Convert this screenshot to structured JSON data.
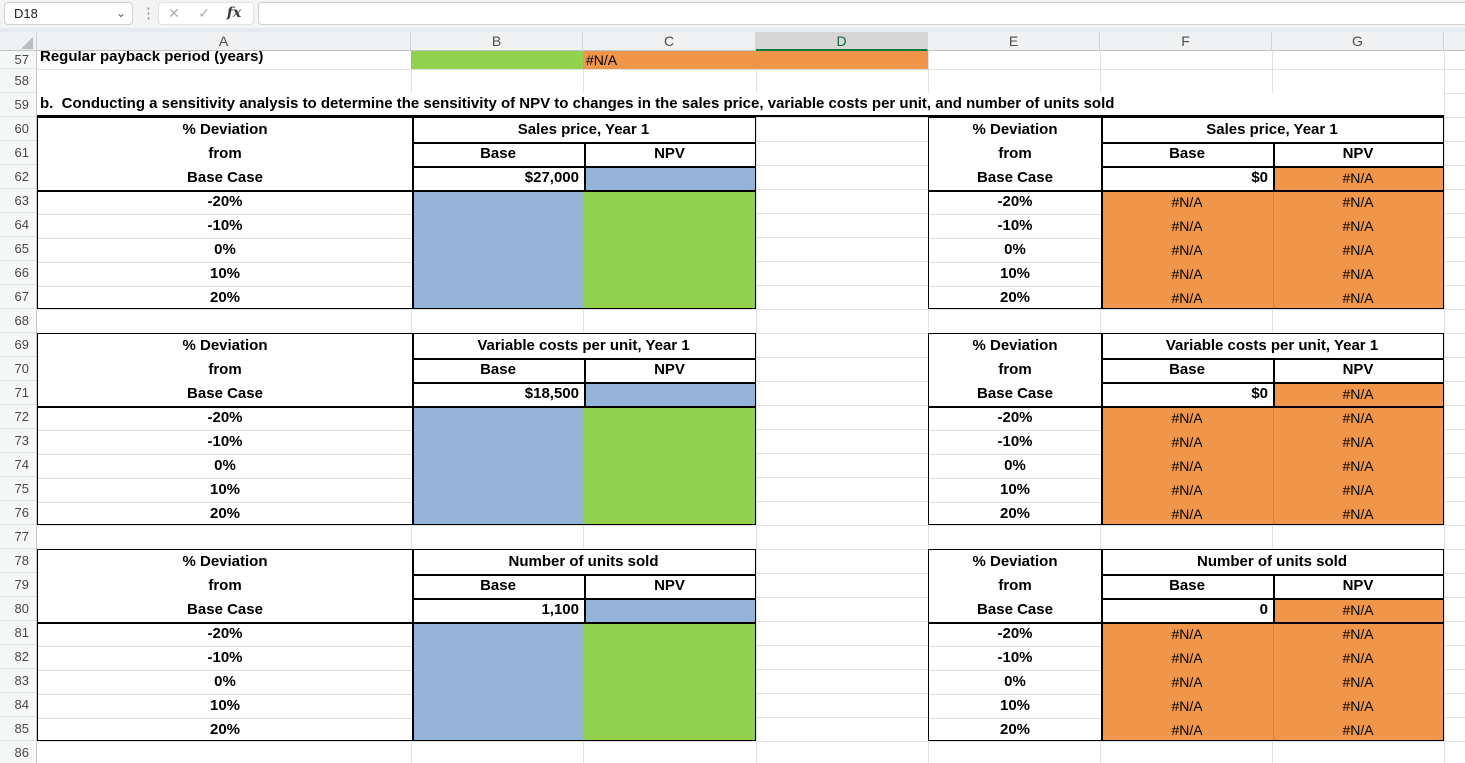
{
  "name_box": {
    "value": "D18"
  },
  "formula_bar": {
    "cancel": "✕",
    "enter": "✓",
    "fx": "fx",
    "value": ""
  },
  "columns": [
    "A",
    "B",
    "C",
    "D",
    "E",
    "F",
    "G"
  ],
  "active_column": "D",
  "row_numbers": [
    "57",
    "58",
    "59",
    "60",
    "61",
    "62",
    "63",
    "64",
    "65",
    "66",
    "67",
    "68",
    "69",
    "70",
    "71",
    "72",
    "73",
    "74",
    "75",
    "76",
    "77",
    "78",
    "79",
    "80",
    "81",
    "82",
    "83",
    "84",
    "85",
    "86"
  ],
  "row57": {
    "label": "Regular payback period (years)",
    "value": "#N/A"
  },
  "section_title": "b.  Conducting a sensitivity analysis to determine the sensitivity of NPV to changes in the sales price, variable costs per unit, and number of units sold",
  "deviation_header": {
    "line1": "% Deviation",
    "line2": "from",
    "line3": "Base Case"
  },
  "labels": {
    "base": "Base",
    "npv": "NPV"
  },
  "deviation_values": [
    "-20%",
    "-10%",
    "0%",
    "10%",
    "20%"
  ],
  "na_text": "#N/A",
  "left_tables": [
    {
      "title": "Sales price, Year 1",
      "base_value": "$27,000"
    },
    {
      "title": "Variable costs per unit, Year 1",
      "base_value": "$18,500"
    },
    {
      "title": "Number of units sold",
      "base_value": "1,100"
    }
  ],
  "right_tables": [
    {
      "title": "Sales price, Year 1",
      "base_value": "$0"
    },
    {
      "title": "Variable costs per unit, Year 1",
      "base_value": "$0"
    },
    {
      "title": "Number of units sold",
      "base_value": "0"
    }
  ],
  "colors": {
    "blue": "#95B3D7",
    "green": "#92D050",
    "orange": "#F0964B",
    "header_accent_green": "#107C41"
  }
}
